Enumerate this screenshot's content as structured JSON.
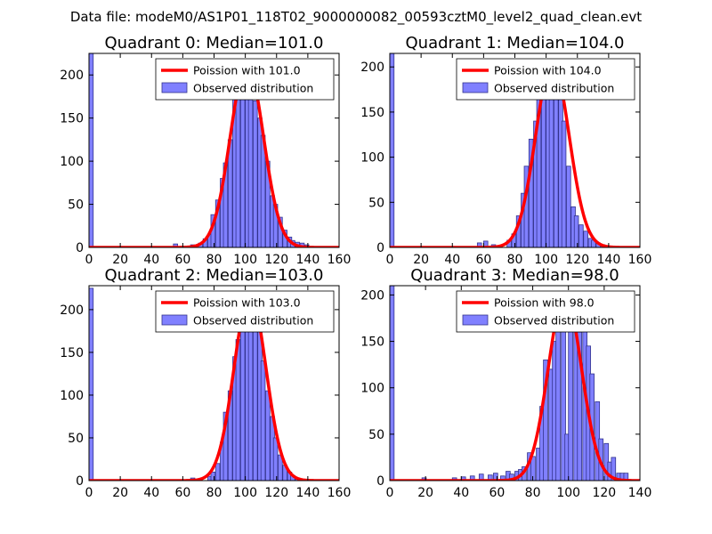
{
  "suptitle": "Data file: modeM0/AS1P01_118T02_9000000082_00593cztM0_level2_quad_clean.evt",
  "colors": {
    "bar_fill": "#8080ff",
    "bar_edge": "#33338c",
    "line": "#ff0000",
    "axis": "#000000"
  },
  "chart_data": [
    {
      "type": "bar",
      "title": "Quadrant 0: Median=101.0",
      "xlim": [
        0,
        160
      ],
      "ylim": [
        0,
        225
      ],
      "xticks": [
        0,
        20,
        40,
        60,
        80,
        100,
        120,
        140,
        160
      ],
      "yticks": [
        0,
        50,
        100,
        150,
        200
      ],
      "legend": [
        "Poission with 101.0",
        "Observed distribution"
      ],
      "legend_loc": "top-right",
      "median": 101.0,
      "amplitude": 213,
      "sigma": 10.6,
      "bin_width": 2.7,
      "bars": [
        [
          0,
          225
        ],
        [
          54,
          4
        ],
        [
          65,
          3
        ],
        [
          70,
          5
        ],
        [
          73,
          10
        ],
        [
          76,
          15
        ],
        [
          78,
          38
        ],
        [
          81,
          55
        ],
        [
          84,
          80
        ],
        [
          86,
          98
        ],
        [
          89,
          125
        ],
        [
          92,
          180
        ],
        [
          94,
          200
        ],
        [
          97,
          215
        ],
        [
          100,
          210
        ],
        [
          102,
          205
        ],
        [
          105,
          170
        ],
        [
          108,
          150
        ],
        [
          110,
          130
        ],
        [
          113,
          100
        ],
        [
          116,
          60
        ],
        [
          118,
          50
        ],
        [
          121,
          35
        ],
        [
          124,
          20
        ],
        [
          127,
          12
        ],
        [
          129,
          8
        ],
        [
          132,
          6
        ],
        [
          135,
          5
        ],
        [
          138,
          3
        ]
      ]
    },
    {
      "type": "bar",
      "title": "Quadrant 1: Median=104.0",
      "xlim": [
        0,
        160
      ],
      "ylim": [
        0,
        215
      ],
      "xticks": [
        0,
        20,
        40,
        60,
        80,
        100,
        120,
        140,
        160
      ],
      "yticks": [
        0,
        50,
        100,
        150,
        200
      ],
      "legend": [
        "Poission with 104.0",
        "Observed distribution"
      ],
      "legend_loc": "top-right",
      "median": 104.0,
      "amplitude": 205,
      "sigma": 10.7,
      "bin_width": 2.7,
      "bars": [
        [
          0,
          215
        ],
        [
          56,
          5
        ],
        [
          60,
          7
        ],
        [
          65,
          3
        ],
        [
          75,
          8
        ],
        [
          78,
          15
        ],
        [
          81,
          35
        ],
        [
          84,
          60
        ],
        [
          86,
          90
        ],
        [
          89,
          120
        ],
        [
          92,
          140
        ],
        [
          94,
          170
        ],
        [
          97,
          180
        ],
        [
          100,
          195
        ],
        [
          102,
          200
        ],
        [
          105,
          195
        ],
        [
          108,
          178
        ],
        [
          110,
          140
        ],
        [
          113,
          90
        ],
        [
          116,
          45
        ],
        [
          118,
          35
        ],
        [
          121,
          25
        ],
        [
          124,
          18
        ],
        [
          127,
          10
        ],
        [
          129,
          8
        ],
        [
          132,
          5
        ],
        [
          135,
          3
        ]
      ]
    },
    {
      "type": "bar",
      "title": "Quadrant 2: Median=103.0",
      "xlim": [
        0,
        160
      ],
      "ylim": [
        0,
        228
      ],
      "xticks": [
        0,
        20,
        40,
        60,
        80,
        100,
        120,
        140,
        160
      ],
      "yticks": [
        0,
        50,
        100,
        150,
        200
      ],
      "legend": [
        "Poission with 103.0",
        "Observed distribution"
      ],
      "legend_loc": "top-right",
      "median": 103.0,
      "amplitude": 218,
      "sigma": 10.2,
      "bin_width": 2.7,
      "bars": [
        [
          0,
          225
        ],
        [
          65,
          3
        ],
        [
          76,
          5
        ],
        [
          78,
          10
        ],
        [
          81,
          20
        ],
        [
          84,
          45
        ],
        [
          86,
          80
        ],
        [
          89,
          105
        ],
        [
          92,
          145
        ],
        [
          94,
          165
        ],
        [
          97,
          190
        ],
        [
          100,
          205
        ],
        [
          102,
          200
        ],
        [
          105,
          195
        ],
        [
          108,
          175
        ],
        [
          110,
          140
        ],
        [
          113,
          105
        ],
        [
          116,
          75
        ],
        [
          118,
          50
        ],
        [
          121,
          30
        ],
        [
          124,
          18
        ],
        [
          127,
          10
        ],
        [
          129,
          6
        ],
        [
          132,
          3
        ]
      ]
    },
    {
      "type": "bar",
      "title": "Quadrant 3: Median=98.0",
      "xlim": [
        0,
        140
      ],
      "ylim": [
        0,
        210
      ],
      "xticks": [
        0,
        20,
        40,
        60,
        80,
        100,
        120,
        140
      ],
      "yticks": [
        0,
        50,
        100,
        150,
        200
      ],
      "legend": [
        "Poission with 98.0",
        "Observed distribution"
      ],
      "legend_loc": "top-right",
      "median": 98.0,
      "amplitude": 200,
      "sigma": 9.3,
      "bin_width": 2.4,
      "bars": [
        [
          0,
          210
        ],
        [
          18,
          3
        ],
        [
          35,
          3
        ],
        [
          40,
          4
        ],
        [
          45,
          5
        ],
        [
          50,
          7
        ],
        [
          55,
          6
        ],
        [
          58,
          8
        ],
        [
          62,
          5
        ],
        [
          65,
          10
        ],
        [
          67,
          7
        ],
        [
          70,
          10
        ],
        [
          72,
          12
        ],
        [
          74,
          15
        ],
        [
          77,
          30
        ],
        [
          79,
          26
        ],
        [
          82,
          35
        ],
        [
          84,
          80
        ],
        [
          86,
          130
        ],
        [
          89,
          120
        ],
        [
          91,
          150
        ],
        [
          93,
          168
        ],
        [
          96,
          195
        ],
        [
          98,
          50
        ],
        [
          100,
          195
        ],
        [
          103,
          175
        ],
        [
          105,
          160
        ],
        [
          108,
          170
        ],
        [
          110,
          145
        ],
        [
          112,
          115
        ],
        [
          115,
          85
        ],
        [
          117,
          45
        ],
        [
          120,
          40
        ],
        [
          122,
          20
        ],
        [
          124,
          25
        ],
        [
          127,
          8
        ],
        [
          129,
          8
        ],
        [
          131,
          8
        ]
      ]
    }
  ]
}
